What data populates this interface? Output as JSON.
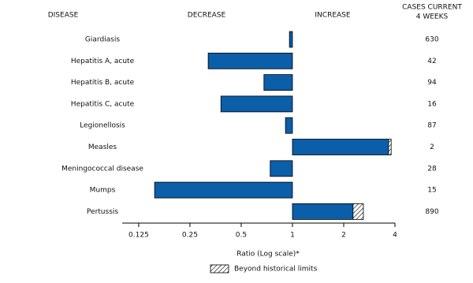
{
  "chart_data": {
    "type": "bar",
    "orientation": "horizontal",
    "headers": {
      "category": "DISEASE",
      "decrease": "DECREASE",
      "increase": "INCREASE",
      "cases": [
        "CASES CURRENT",
        "4 WEEKS"
      ]
    },
    "categories": [
      "Giardiasis",
      "Hepatitis A, acute",
      "Hepatitis B, acute",
      "Hepatitis C, acute",
      "Legionellosis",
      "Measles",
      "Meningococcal disease",
      "Mumps",
      "Pertussis"
    ],
    "values": [
      0.96,
      0.32,
      0.68,
      0.38,
      0.91,
      3.8,
      0.74,
      0.155,
      2.61
    ],
    "historical_limits": [
      null,
      null,
      null,
      null,
      null,
      3.67,
      null,
      null,
      2.27
    ],
    "cases": [
      630,
      42,
      94,
      16,
      87,
      2,
      28,
      15,
      890
    ],
    "color": "#0b5ea8",
    "baseline": 1,
    "log_scale": true,
    "xlim": [
      0.1,
      4
    ],
    "xticks": [
      0.125,
      0.25,
      0.5,
      1,
      2,
      4
    ],
    "xlabel": "Ratio (Log scale)*",
    "legend": {
      "label": "Beyond historical limits",
      "position": "bottom"
    }
  }
}
